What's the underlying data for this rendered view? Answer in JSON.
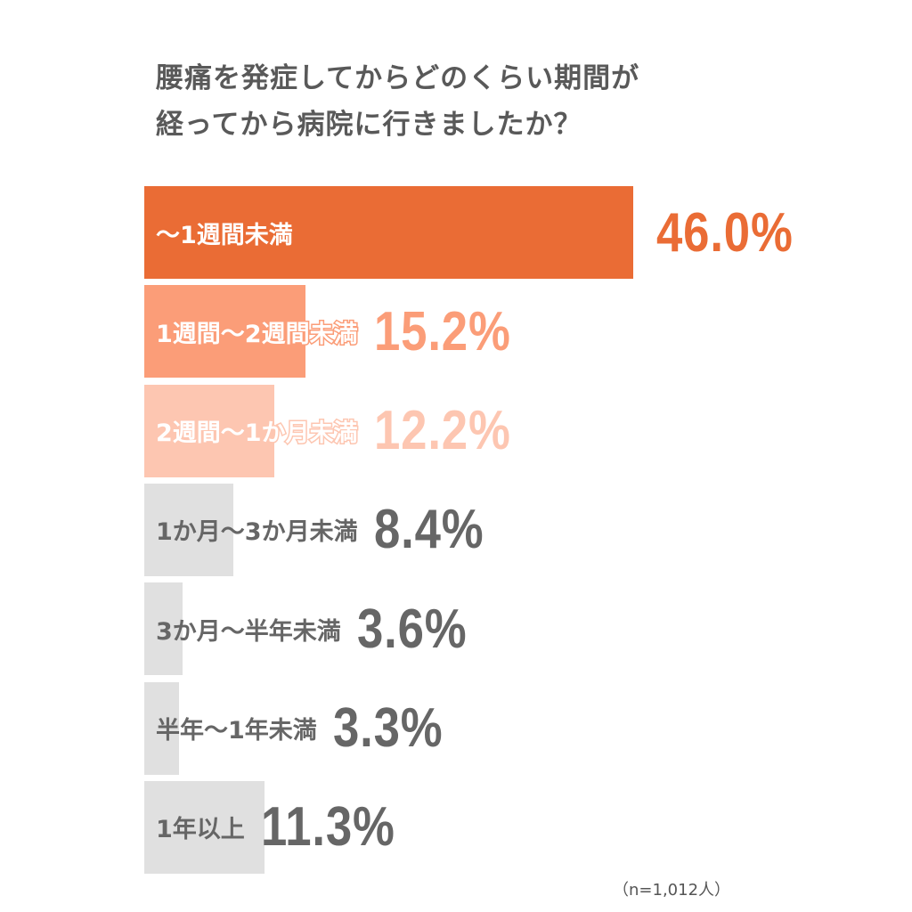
{
  "title_lines": [
    "腰痛を発症してからどのくらい期間が",
    "経ってから病院に行きましたか？"
  ],
  "note": "（n=1,012人）",
  "colors": {
    "c1": "#EA6C35",
    "c2": "#FB9D78",
    "c3": "#FDC6B1",
    "gray": "#E0E0E0",
    "gray_text": "#666666"
  },
  "chart_data": {
    "type": "bar",
    "orientation": "horizontal",
    "title": "腰痛を発症してからどのくらい期間が経ってから病院に行きましたか？",
    "categories": [
      "〜1週間未満",
      "1週間〜2週間未満",
      "2週間〜1か月未満",
      "1か月〜3か月未満",
      "3か月〜半年未満",
      "半年〜1年未満",
      "1年以上"
    ],
    "values": [
      46.0,
      15.2,
      12.2,
      8.4,
      3.6,
      3.3,
      11.3
    ],
    "value_labels": [
      "46.0%",
      "15.2%",
      "12.2%",
      "8.4%",
      "3.6%",
      "3.3%",
      "11.3%"
    ],
    "bar_colors": [
      "#EA6C35",
      "#FB9D78",
      "#FDC6B1",
      "#E0E0E0",
      "#E0E0E0",
      "#E0E0E0",
      "#E0E0E0"
    ],
    "label_colors": [
      "#EA6C35",
      "#FB9D78",
      "#FDC6B1",
      "#666666",
      "#666666",
      "#666666",
      "#666666"
    ],
    "grid": false,
    "legend": "none"
  }
}
